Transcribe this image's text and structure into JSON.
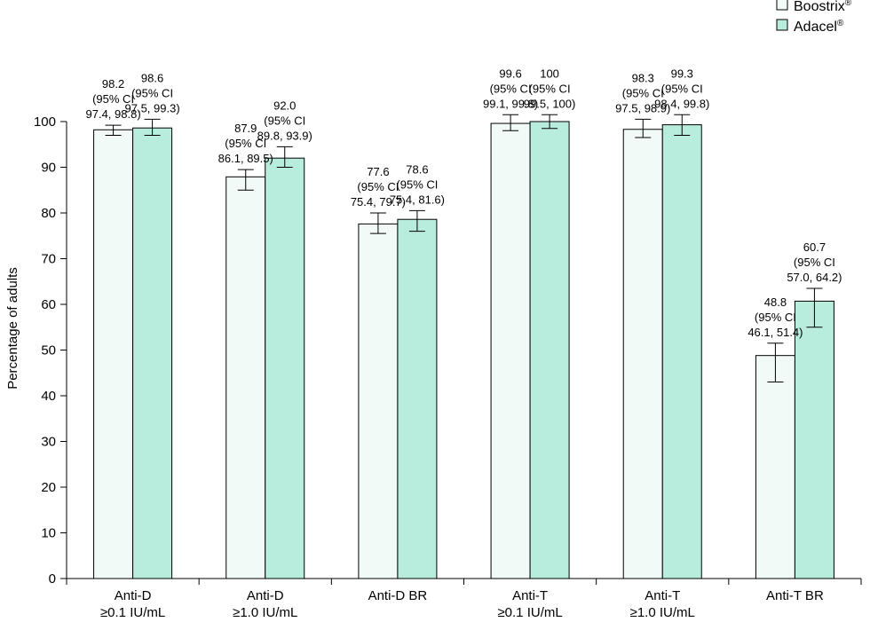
{
  "chart_data": {
    "type": "bar",
    "title": "",
    "xlabel": "",
    "ylabel": "Percentage of adults",
    "ylim": [
      0,
      100
    ],
    "yticks": [
      0,
      10,
      20,
      30,
      40,
      50,
      60,
      70,
      80,
      90,
      100
    ],
    "grid": false,
    "legend_position": "top-right",
    "categories": [
      [
        "Anti-D",
        "≥0.1 IU/mL"
      ],
      [
        "Anti-D",
        "≥1.0 IU/mL"
      ],
      [
        "Anti-D BR"
      ],
      [
        "Anti-T",
        "≥0.1 IU/mL"
      ],
      [
        "Anti-T",
        "≥1.0 IU/mL"
      ],
      [
        "Anti-T BR"
      ]
    ],
    "series": [
      {
        "name": "Boostrix",
        "mark": "®",
        "color": "#f2faf7",
        "values": [
          98.2,
          87.9,
          77.6,
          99.6,
          98.3,
          48.8
        ],
        "ci_low": [
          97.4,
          86.1,
          75.4,
          99.1,
          97.5,
          46.1
        ],
        "ci_high": [
          98.8,
          89.5,
          79.7,
          99.8,
          98.9,
          51.4
        ],
        "err_low": [
          97.0,
          85.0,
          75.5,
          98.0,
          96.5,
          43.0
        ],
        "err_high": [
          99.2,
          89.5,
          80.0,
          101.5,
          100.5,
          51.5
        ],
        "labels": [
          [
            "98.2",
            "(95% CI",
            "97.4, 98.8)"
          ],
          [
            "87.9",
            "(95% CI",
            "86.1, 89.5)"
          ],
          [
            "77.6",
            "(95% CI",
            "75.4, 79.7)"
          ],
          [
            "99.6",
            "(95% CI",
            "99.1, 99.8)"
          ],
          [
            "98.3",
            "(95% CI",
            "97.5, 98.9)"
          ],
          [
            "48.8",
            "(95% CI",
            "46.1, 51.4)"
          ]
        ]
      },
      {
        "name": "Adacel",
        "mark": "®",
        "color": "#b8ecdc",
        "values": [
          98.6,
          92.0,
          78.6,
          100,
          99.3,
          60.7
        ],
        "ci_low": [
          97.5,
          89.8,
          75.4,
          99.5,
          98.4,
          57.0
        ],
        "ci_high": [
          99.3,
          93.9,
          81.6,
          100,
          99.8,
          64.2
        ],
        "err_low": [
          97.0,
          90.0,
          76.0,
          98.5,
          97.0,
          55.0
        ],
        "err_high": [
          100.5,
          94.5,
          80.5,
          101.5,
          101.5,
          63.5
        ],
        "labels": [
          [
            "98.6",
            "(95% CI",
            "97.5, 99.3)"
          ],
          [
            "92.0",
            "(95% CI",
            "89.8, 93.9)"
          ],
          [
            "78.6",
            "(95% CI",
            "75.4, 81.6)"
          ],
          [
            "100",
            "(95% CI",
            "99.5, 100)"
          ],
          [
            "99.3",
            "(95% CI",
            "98.4, 99.8)"
          ],
          [
            "60.7",
            "(95% CI",
            "57.0, 64.2)"
          ]
        ]
      }
    ]
  }
}
